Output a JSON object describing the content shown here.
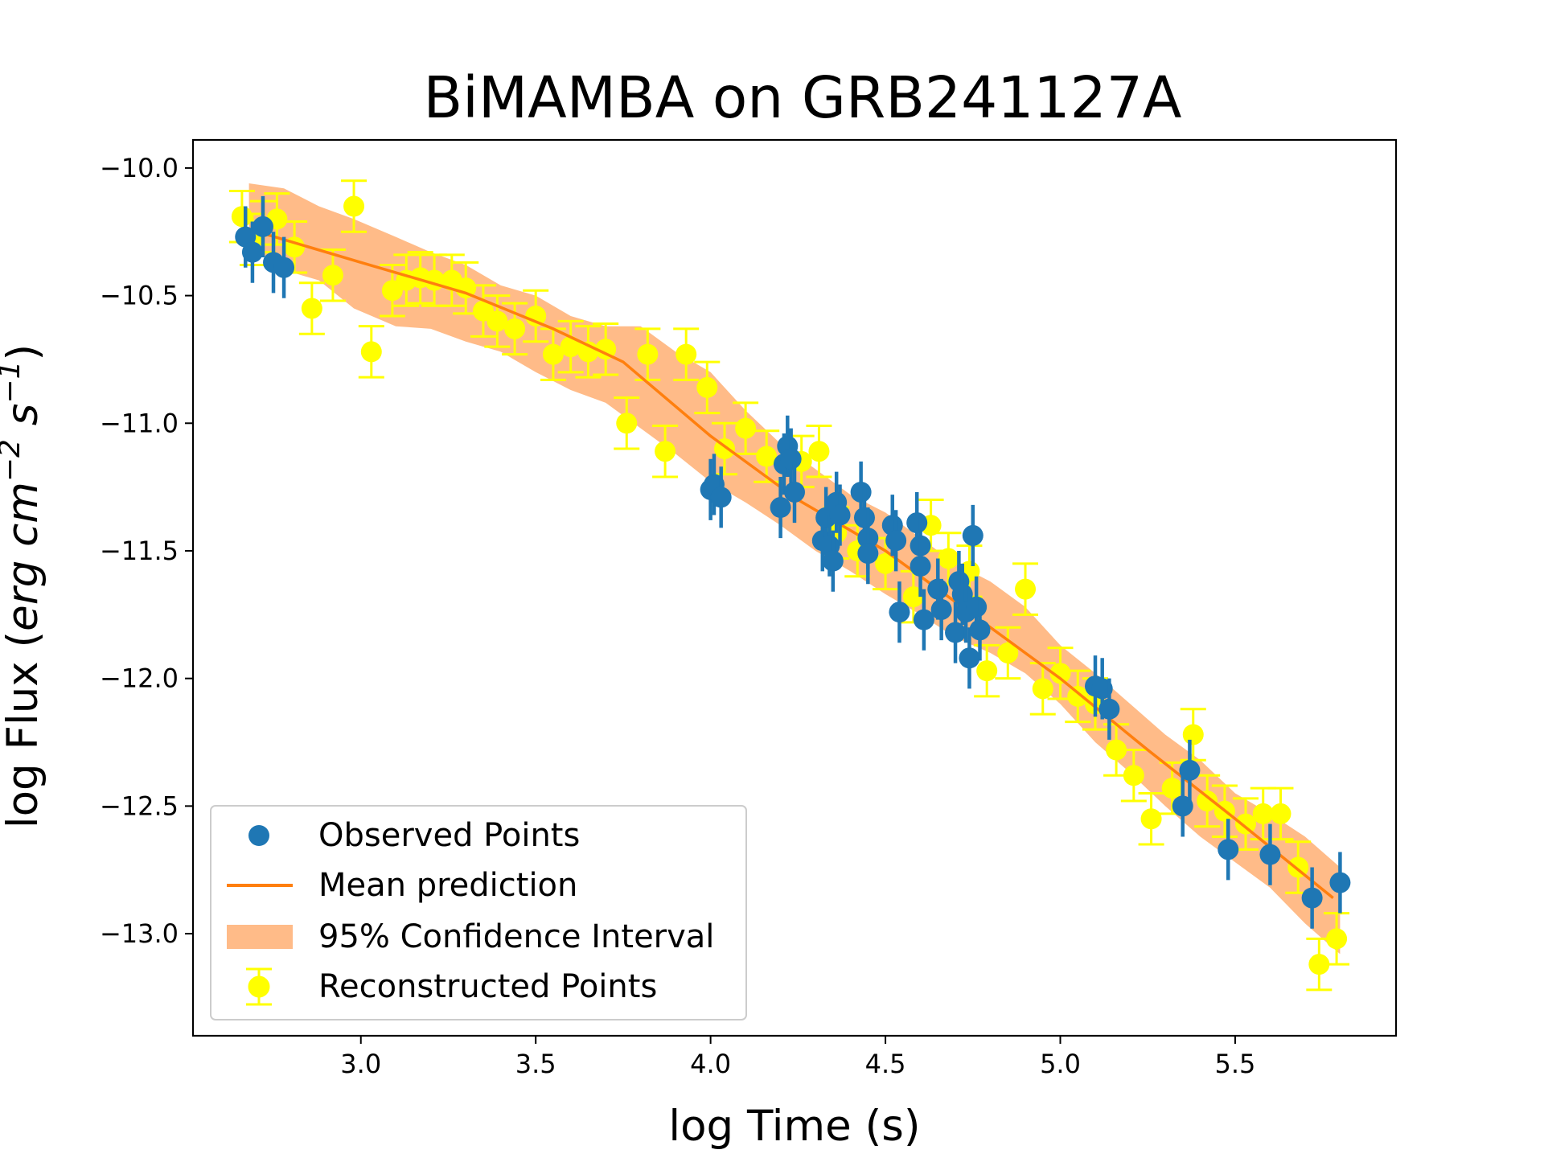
{
  "colors": {
    "observed": "#1f77b4",
    "mean": "#ff7f0e",
    "ci": "#ffbb88",
    "reconstructed": "#ffff00"
  },
  "chart_data": {
    "type": "scatter",
    "title": "BiMAMBA on GRB241127A",
    "xlabel": "log Time (s)",
    "ylabel_main": "log Flux (",
    "ylabel_units": "erg cm",
    "ylabel_units_mid": " s",
    "ylabel_exp1": "−2",
    "ylabel_exp2": "−1",
    "ylabel_close": ")",
    "xlim": [
      2.52,
      5.96
    ],
    "ylim": [
      -13.4,
      -9.89
    ],
    "xticks": [
      3.0,
      3.5,
      4.0,
      4.5,
      5.0,
      5.5
    ],
    "xtick_labels": [
      "3.0",
      "3.5",
      "4.0",
      "4.5",
      "5.0",
      "5.5"
    ],
    "yticks": [
      -10.0,
      -10.5,
      -11.0,
      -11.5,
      -12.0,
      -12.5,
      -13.0
    ],
    "ytick_labels": [
      "−10.0",
      "−10.5",
      "−11.0",
      "−11.5",
      "−12.0",
      "−12.5",
      "−13.0"
    ],
    "legend": {
      "placement": "lower-left",
      "entries": [
        "Observed Points",
        "Mean prediction",
        "95% Confidence Interval",
        "Reconstructed Points"
      ]
    },
    "mean_prediction": {
      "name": "Mean prediction",
      "x": [
        2.68,
        3.0,
        3.3,
        3.55,
        3.75,
        4.0,
        4.25,
        4.5,
        4.75,
        5.0,
        5.25,
        5.5,
        5.78
      ],
      "y": [
        -10.24,
        -10.37,
        -10.49,
        -10.63,
        -10.76,
        -11.05,
        -11.3,
        -11.5,
        -11.75,
        -12.0,
        -12.28,
        -12.55,
        -12.86
      ]
    },
    "confidence_interval": {
      "name": "95% Confidence Interval",
      "x": [
        2.68,
        2.78,
        2.88,
        2.98,
        3.1,
        3.2,
        3.3,
        3.4,
        3.5,
        3.6,
        3.7,
        3.8,
        3.9,
        4.0,
        4.1,
        4.2,
        4.3,
        4.4,
        4.5,
        4.6,
        4.7,
        4.8,
        4.9,
        5.0,
        5.1,
        5.2,
        5.3,
        5.4,
        5.5,
        5.6,
        5.7,
        5.8
      ],
      "lower": [
        -10.3,
        -10.4,
        -10.44,
        -10.55,
        -10.62,
        -10.63,
        -10.68,
        -10.72,
        -10.8,
        -10.87,
        -10.92,
        -11.02,
        -11.12,
        -11.23,
        -11.31,
        -11.4,
        -11.5,
        -11.58,
        -11.67,
        -11.75,
        -11.84,
        -11.9,
        -11.98,
        -12.1,
        -12.25,
        -12.37,
        -12.5,
        -12.62,
        -12.72,
        -12.82,
        -12.96,
        -13.08
      ],
      "upper": [
        -10.06,
        -10.08,
        -10.15,
        -10.2,
        -10.27,
        -10.33,
        -10.38,
        -10.46,
        -10.5,
        -10.58,
        -10.62,
        -10.62,
        -10.72,
        -10.8,
        -10.95,
        -11.08,
        -11.18,
        -11.28,
        -11.35,
        -11.45,
        -11.55,
        -11.62,
        -11.72,
        -11.87,
        -11.98,
        -12.1,
        -12.22,
        -12.32,
        -12.45,
        -12.53,
        -12.62,
        -12.74
      ]
    },
    "series": [
      {
        "name": "Reconstructed Points",
        "x": [
          2.66,
          2.69,
          2.72,
          2.76,
          2.81,
          2.86,
          2.92,
          2.98,
          3.03,
          3.09,
          3.13,
          3.17,
          3.21,
          3.26,
          3.3,
          3.35,
          3.39,
          3.44,
          3.5,
          3.55,
          3.6,
          3.65,
          3.7,
          3.76,
          3.82,
          3.87,
          3.93,
          3.99,
          4.04,
          4.1,
          4.16,
          4.26,
          4.31,
          4.36,
          4.42,
          4.5,
          4.58,
          4.63,
          4.68,
          4.74,
          4.79,
          4.85,
          4.9,
          4.95,
          5.0,
          5.05,
          5.1,
          5.16,
          5.21,
          5.26,
          5.32,
          5.38,
          5.42,
          5.47,
          5.53,
          5.58,
          5.63,
          5.68,
          5.74,
          5.79
        ],
        "y": [
          -10.19,
          -10.28,
          -10.23,
          -10.2,
          -10.31,
          -10.55,
          -10.42,
          -10.15,
          -10.72,
          -10.48,
          -10.44,
          -10.43,
          -10.44,
          -10.44,
          -10.47,
          -10.56,
          -10.6,
          -10.63,
          -10.58,
          -10.73,
          -10.7,
          -10.72,
          -10.71,
          -11.0,
          -10.73,
          -11.11,
          -10.73,
          -10.86,
          -11.1,
          -11.02,
          -11.13,
          -11.15,
          -11.11,
          -11.43,
          -11.5,
          -11.55,
          -11.68,
          -11.4,
          -11.53,
          -11.58,
          -11.97,
          -11.9,
          -11.65,
          -12.04,
          -11.98,
          -12.07,
          -12.1,
          -12.28,
          -12.38,
          -12.55,
          -12.43,
          -12.22,
          -12.48,
          -12.52,
          -12.57,
          -12.53,
          -12.53,
          -12.74,
          -13.12,
          -13.02
        ],
        "yerr": 0.1
      },
      {
        "name": "Observed Points",
        "x": [
          2.67,
          2.69,
          2.72,
          2.75,
          2.78,
          4.0,
          4.01,
          4.03,
          4.2,
          4.21,
          4.22,
          4.23,
          4.24,
          4.32,
          4.33,
          4.34,
          4.35,
          4.36,
          4.37,
          4.43,
          4.44,
          4.45,
          4.45,
          4.52,
          4.53,
          4.54,
          4.59,
          4.6,
          4.6,
          4.61,
          4.65,
          4.66,
          4.7,
          4.71,
          4.72,
          4.73,
          4.74,
          4.75,
          4.76,
          4.77,
          5.1,
          5.12,
          5.14,
          5.35,
          5.37,
          5.48,
          5.6,
          5.72,
          5.8
        ],
        "y": [
          -10.27,
          -10.33,
          -10.23,
          -10.37,
          -10.39,
          -11.26,
          -11.24,
          -11.29,
          -11.33,
          -11.16,
          -11.09,
          -11.14,
          -11.27,
          -11.46,
          -11.37,
          -11.48,
          -11.54,
          -11.31,
          -11.36,
          -11.27,
          -11.37,
          -11.45,
          -11.51,
          -11.4,
          -11.46,
          -11.74,
          -11.39,
          -11.48,
          -11.56,
          -11.77,
          -11.65,
          -11.73,
          -11.82,
          -11.62,
          -11.67,
          -11.74,
          -11.92,
          -11.44,
          -11.72,
          -11.81,
          -12.03,
          -12.04,
          -12.12,
          -12.5,
          -12.36,
          -12.67,
          -12.69,
          -12.86,
          -12.8
        ],
        "yerr": 0.12
      }
    ]
  }
}
